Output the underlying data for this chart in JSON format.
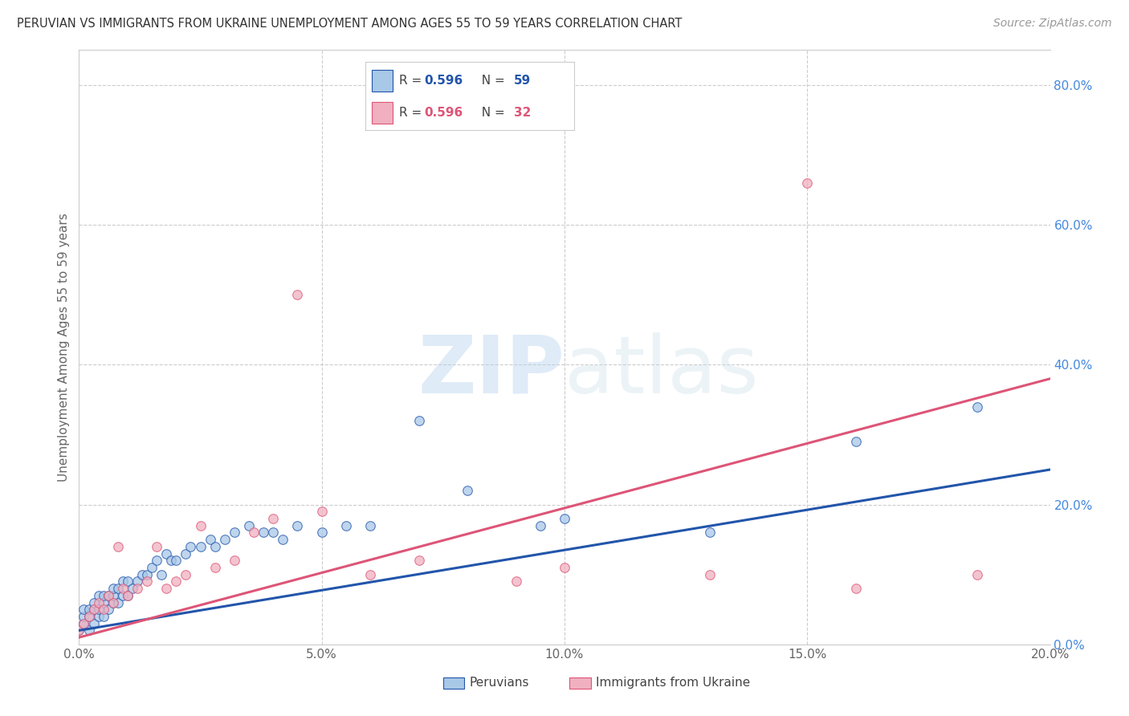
{
  "title": "PERUVIAN VS IMMIGRANTS FROM UKRAINE UNEMPLOYMENT AMONG AGES 55 TO 59 YEARS CORRELATION CHART",
  "source": "Source: ZipAtlas.com",
  "ylabel": "Unemployment Among Ages 55 to 59 years",
  "peruvian_color": "#a8c8e8",
  "ukraine_color": "#f0b0c0",
  "peruvian_line_color": "#2255aa",
  "ukraine_line_color": "#dd5577",
  "R_peruvian": 0.596,
  "N_peruvian": 59,
  "R_ukraine": 0.596,
  "N_ukraine": 32,
  "xlim": [
    0.0,
    0.2
  ],
  "ylim": [
    0.0,
    0.85
  ],
  "x_ticks": [
    0.0,
    0.05,
    0.1,
    0.15,
    0.2
  ],
  "y_ticks": [
    0.0,
    0.2,
    0.4,
    0.6,
    0.8
  ],
  "watermark_zip": "ZIP",
  "watermark_atlas": "atlas",
  "background_color": "#ffffff",
  "peruvian_scatter_x": [
    0.0,
    0.001,
    0.001,
    0.001,
    0.002,
    0.002,
    0.002,
    0.003,
    0.003,
    0.003,
    0.004,
    0.004,
    0.004,
    0.005,
    0.005,
    0.005,
    0.006,
    0.006,
    0.007,
    0.007,
    0.007,
    0.008,
    0.008,
    0.009,
    0.009,
    0.01,
    0.01,
    0.011,
    0.012,
    0.013,
    0.014,
    0.015,
    0.016,
    0.017,
    0.018,
    0.019,
    0.02,
    0.022,
    0.023,
    0.025,
    0.027,
    0.028,
    0.03,
    0.032,
    0.035,
    0.038,
    0.04,
    0.042,
    0.045,
    0.05,
    0.055,
    0.06,
    0.07,
    0.08,
    0.095,
    0.1,
    0.13,
    0.16,
    0.185
  ],
  "peruvian_scatter_y": [
    0.02,
    0.03,
    0.04,
    0.05,
    0.02,
    0.04,
    0.05,
    0.03,
    0.05,
    0.06,
    0.04,
    0.05,
    0.07,
    0.04,
    0.06,
    0.07,
    0.05,
    0.07,
    0.06,
    0.07,
    0.08,
    0.06,
    0.08,
    0.07,
    0.09,
    0.07,
    0.09,
    0.08,
    0.09,
    0.1,
    0.1,
    0.11,
    0.12,
    0.1,
    0.13,
    0.12,
    0.12,
    0.13,
    0.14,
    0.14,
    0.15,
    0.14,
    0.15,
    0.16,
    0.17,
    0.16,
    0.16,
    0.15,
    0.17,
    0.16,
    0.17,
    0.17,
    0.32,
    0.22,
    0.17,
    0.18,
    0.16,
    0.29,
    0.34
  ],
  "ukraine_scatter_x": [
    0.0,
    0.001,
    0.002,
    0.003,
    0.004,
    0.005,
    0.006,
    0.007,
    0.008,
    0.009,
    0.01,
    0.012,
    0.014,
    0.016,
    0.018,
    0.02,
    0.022,
    0.025,
    0.028,
    0.032,
    0.036,
    0.04,
    0.045,
    0.05,
    0.06,
    0.07,
    0.09,
    0.1,
    0.13,
    0.15,
    0.16,
    0.185
  ],
  "ukraine_scatter_y": [
    0.02,
    0.03,
    0.04,
    0.05,
    0.06,
    0.05,
    0.07,
    0.06,
    0.14,
    0.08,
    0.07,
    0.08,
    0.09,
    0.14,
    0.08,
    0.09,
    0.1,
    0.17,
    0.11,
    0.12,
    0.16,
    0.18,
    0.5,
    0.19,
    0.1,
    0.12,
    0.09,
    0.11,
    0.1,
    0.66,
    0.08,
    0.1
  ],
  "peruvian_line_x": [
    0.0,
    0.2
  ],
  "peruvian_line_y": [
    0.02,
    0.25
  ],
  "ukraine_line_x": [
    0.0,
    0.2
  ],
  "ukraine_line_y": [
    0.01,
    0.38
  ]
}
